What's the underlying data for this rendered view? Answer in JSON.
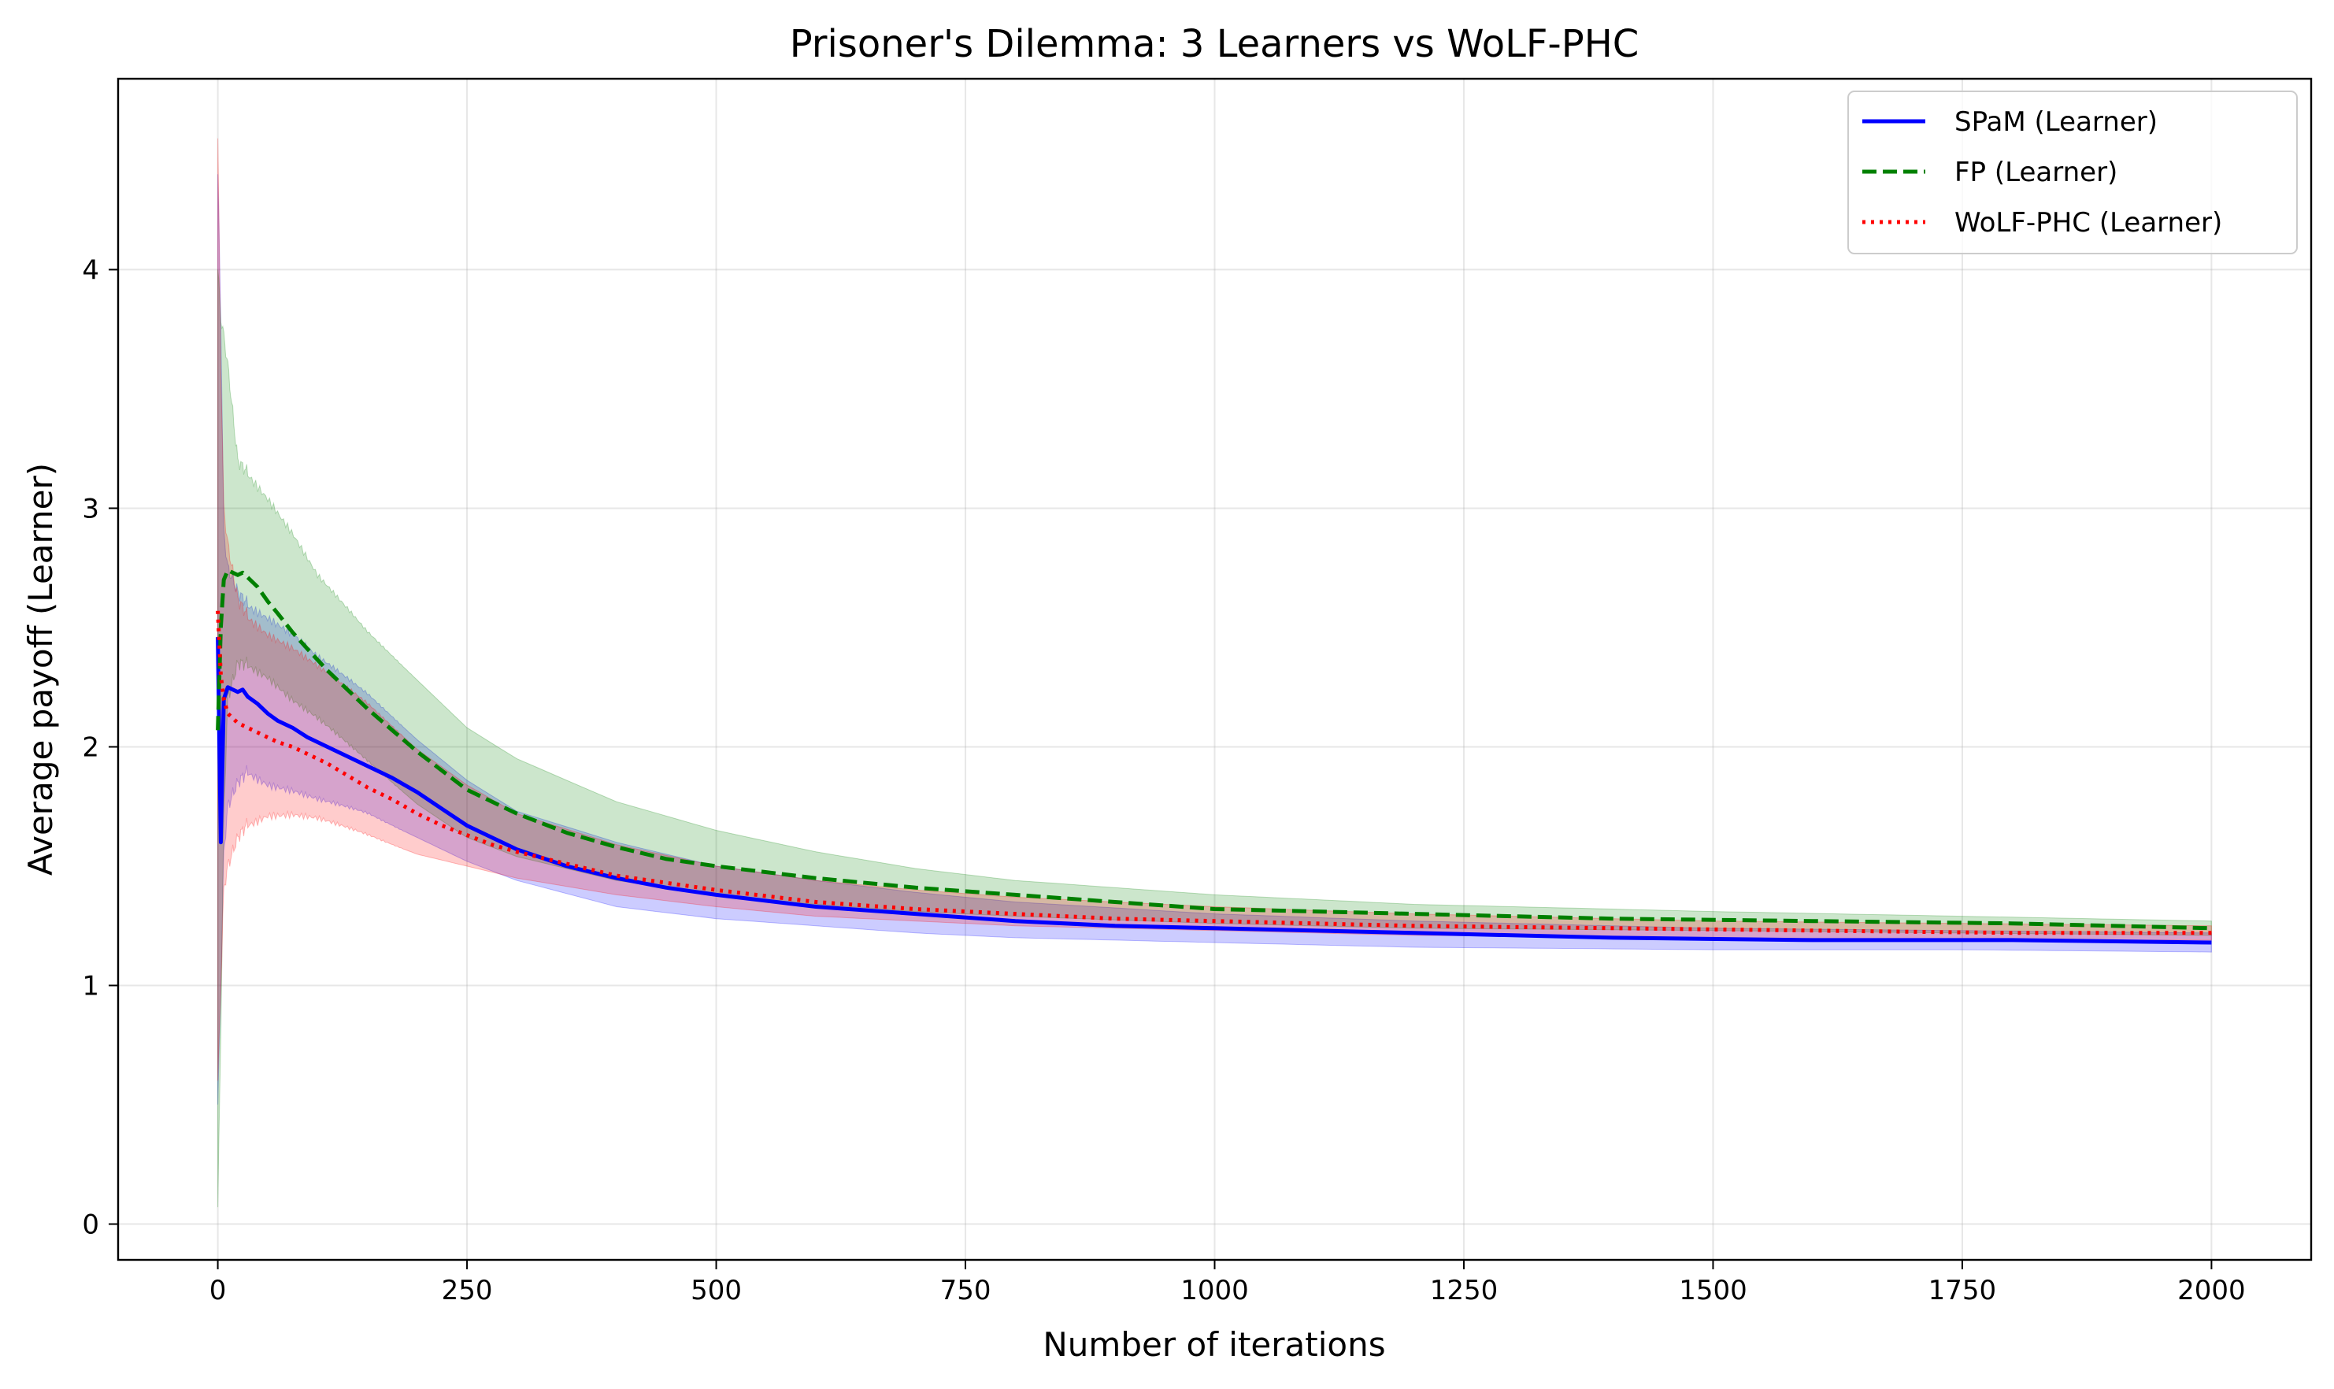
{
  "chart_data": {
    "type": "line",
    "title": "Prisoner's Dilemma: 3 Learners vs WoLF-PHC",
    "xlabel": "Number of iterations",
    "ylabel": "Average payoff (Learner)",
    "xlim": [
      -100,
      2100
    ],
    "ylim": [
      -0.15,
      4.8
    ],
    "xticks": [
      0,
      250,
      500,
      750,
      1000,
      1250,
      1500,
      1750,
      2000
    ],
    "yticks": [
      0,
      1,
      2,
      3,
      4
    ],
    "grid": true,
    "legend_position": "top-right",
    "series": [
      {
        "name": "SPaM (Learner)",
        "color": "#0000ff",
        "band_color": "#0000ff",
        "line_style": "solid",
        "points": [
          [
            0,
            2.46
          ],
          [
            3,
            1.6
          ],
          [
            6,
            2.2
          ],
          [
            10,
            2.25
          ],
          [
            15,
            2.24
          ],
          [
            20,
            2.23
          ],
          [
            25,
            2.24
          ],
          [
            30,
            2.21
          ],
          [
            40,
            2.18
          ],
          [
            50,
            2.14
          ],
          [
            60,
            2.11
          ],
          [
            75,
            2.08
          ],
          [
            90,
            2.04
          ],
          [
            110,
            2.0
          ],
          [
            130,
            1.96
          ],
          [
            150,
            1.92
          ],
          [
            175,
            1.87
          ],
          [
            200,
            1.81
          ],
          [
            225,
            1.74
          ],
          [
            250,
            1.67
          ],
          [
            275,
            1.62
          ],
          [
            300,
            1.57
          ],
          [
            350,
            1.5
          ],
          [
            400,
            1.45
          ],
          [
            450,
            1.41
          ],
          [
            500,
            1.38
          ],
          [
            600,
            1.33
          ],
          [
            700,
            1.3
          ],
          [
            800,
            1.27
          ],
          [
            900,
            1.25
          ],
          [
            1000,
            1.24
          ],
          [
            1200,
            1.22
          ],
          [
            1400,
            1.2
          ],
          [
            1600,
            1.19
          ],
          [
            1800,
            1.19
          ],
          [
            2000,
            1.18
          ]
        ],
        "upper": [
          [
            0,
            4.4
          ],
          [
            3,
            3.8
          ],
          [
            6,
            2.9
          ],
          [
            10,
            2.75
          ],
          [
            20,
            2.65
          ],
          [
            30,
            2.6
          ],
          [
            50,
            2.55
          ],
          [
            75,
            2.48
          ],
          [
            100,
            2.38
          ],
          [
            150,
            2.22
          ],
          [
            200,
            2.03
          ],
          [
            250,
            1.86
          ],
          [
            300,
            1.73
          ],
          [
            400,
            1.6
          ],
          [
            500,
            1.5
          ],
          [
            600,
            1.44
          ],
          [
            700,
            1.39
          ],
          [
            800,
            1.35
          ],
          [
            1000,
            1.3
          ],
          [
            1200,
            1.27
          ],
          [
            1500,
            1.24
          ],
          [
            1750,
            1.23
          ],
          [
            2000,
            1.22
          ]
        ],
        "lower": [
          [
            0,
            0.5
          ],
          [
            3,
            1.0
          ],
          [
            6,
            1.55
          ],
          [
            10,
            1.75
          ],
          [
            20,
            1.85
          ],
          [
            30,
            1.9
          ],
          [
            50,
            1.85
          ],
          [
            75,
            1.82
          ],
          [
            100,
            1.78
          ],
          [
            150,
            1.72
          ],
          [
            200,
            1.62
          ],
          [
            250,
            1.52
          ],
          [
            300,
            1.44
          ],
          [
            400,
            1.33
          ],
          [
            500,
            1.28
          ],
          [
            600,
            1.25
          ],
          [
            700,
            1.22
          ],
          [
            800,
            1.2
          ],
          [
            1000,
            1.18
          ],
          [
            1200,
            1.16
          ],
          [
            1500,
            1.15
          ],
          [
            1750,
            1.15
          ],
          [
            2000,
            1.14
          ]
        ]
      },
      {
        "name": "FP (Learner)",
        "color": "#008000",
        "band_color": "#008000",
        "line_style": "dashed",
        "points": [
          [
            0,
            2.07
          ],
          [
            3,
            2.5
          ],
          [
            6,
            2.7
          ],
          [
            10,
            2.74
          ],
          [
            15,
            2.73
          ],
          [
            20,
            2.72
          ],
          [
            25,
            2.73
          ],
          [
            30,
            2.71
          ],
          [
            40,
            2.67
          ],
          [
            50,
            2.61
          ],
          [
            60,
            2.56
          ],
          [
            75,
            2.48
          ],
          [
            90,
            2.41
          ],
          [
            110,
            2.32
          ],
          [
            130,
            2.24
          ],
          [
            150,
            2.16
          ],
          [
            175,
            2.07
          ],
          [
            200,
            1.98
          ],
          [
            225,
            1.9
          ],
          [
            250,
            1.82
          ],
          [
            300,
            1.72
          ],
          [
            350,
            1.64
          ],
          [
            400,
            1.58
          ],
          [
            450,
            1.53
          ],
          [
            500,
            1.5
          ],
          [
            600,
            1.45
          ],
          [
            700,
            1.41
          ],
          [
            800,
            1.38
          ],
          [
            900,
            1.35
          ],
          [
            1000,
            1.32
          ],
          [
            1200,
            1.3
          ],
          [
            1400,
            1.28
          ],
          [
            1600,
            1.27
          ],
          [
            1800,
            1.26
          ],
          [
            2000,
            1.24
          ]
        ],
        "upper": [
          [
            0,
            4.0
          ],
          [
            3,
            3.8
          ],
          [
            6,
            3.72
          ],
          [
            10,
            3.6
          ],
          [
            20,
            3.2
          ],
          [
            30,
            3.15
          ],
          [
            50,
            3.05
          ],
          [
            75,
            2.9
          ],
          [
            100,
            2.72
          ],
          [
            150,
            2.48
          ],
          [
            200,
            2.28
          ],
          [
            250,
            2.08
          ],
          [
            300,
            1.95
          ],
          [
            400,
            1.77
          ],
          [
            500,
            1.65
          ],
          [
            600,
            1.56
          ],
          [
            700,
            1.49
          ],
          [
            800,
            1.44
          ],
          [
            1000,
            1.38
          ],
          [
            1200,
            1.34
          ],
          [
            1500,
            1.31
          ],
          [
            1750,
            1.29
          ],
          [
            2000,
            1.27
          ]
        ],
        "lower": [
          [
            0,
            0.07
          ],
          [
            3,
            0.8
          ],
          [
            6,
            1.7
          ],
          [
            10,
            2.2
          ],
          [
            20,
            2.35
          ],
          [
            30,
            2.35
          ],
          [
            50,
            2.3
          ],
          [
            75,
            2.2
          ],
          [
            100,
            2.12
          ],
          [
            150,
            1.94
          ],
          [
            200,
            1.76
          ],
          [
            250,
            1.62
          ],
          [
            300,
            1.54
          ],
          [
            400,
            1.44
          ],
          [
            500,
            1.38
          ],
          [
            600,
            1.34
          ],
          [
            700,
            1.31
          ],
          [
            800,
            1.29
          ],
          [
            1000,
            1.26
          ],
          [
            1200,
            1.24
          ],
          [
            1500,
            1.23
          ],
          [
            1750,
            1.22
          ],
          [
            2000,
            1.21
          ]
        ]
      },
      {
        "name": "WoLF-PHC (Learner)",
        "color": "#ff0000",
        "band_color": "#ff0000",
        "line_style": "dotted",
        "points": [
          [
            0,
            2.57
          ],
          [
            3,
            2.3
          ],
          [
            6,
            2.2
          ],
          [
            10,
            2.14
          ],
          [
            15,
            2.12
          ],
          [
            20,
            2.1
          ],
          [
            30,
            2.08
          ],
          [
            40,
            2.06
          ],
          [
            50,
            2.04
          ],
          [
            60,
            2.02
          ],
          [
            75,
            2.0
          ],
          [
            90,
            1.97
          ],
          [
            110,
            1.93
          ],
          [
            130,
            1.88
          ],
          [
            150,
            1.83
          ],
          [
            175,
            1.78
          ],
          [
            200,
            1.72
          ],
          [
            225,
            1.67
          ],
          [
            250,
            1.63
          ],
          [
            275,
            1.59
          ],
          [
            300,
            1.56
          ],
          [
            350,
            1.51
          ],
          [
            400,
            1.46
          ],
          [
            450,
            1.43
          ],
          [
            500,
            1.4
          ],
          [
            600,
            1.35
          ],
          [
            700,
            1.32
          ],
          [
            800,
            1.3
          ],
          [
            900,
            1.28
          ],
          [
            1000,
            1.27
          ],
          [
            1200,
            1.25
          ],
          [
            1400,
            1.24
          ],
          [
            1600,
            1.23
          ],
          [
            1800,
            1.22
          ],
          [
            2000,
            1.22
          ]
        ],
        "upper": [
          [
            0,
            4.55
          ],
          [
            3,
            3.6
          ],
          [
            6,
            3.0
          ],
          [
            10,
            2.85
          ],
          [
            20,
            2.62
          ],
          [
            30,
            2.55
          ],
          [
            50,
            2.48
          ],
          [
            75,
            2.42
          ],
          [
            100,
            2.34
          ],
          [
            150,
            2.18
          ],
          [
            200,
            1.99
          ],
          [
            250,
            1.84
          ],
          [
            300,
            1.72
          ],
          [
            400,
            1.59
          ],
          [
            500,
            1.5
          ],
          [
            600,
            1.44
          ],
          [
            700,
            1.4
          ],
          [
            800,
            1.37
          ],
          [
            1000,
            1.33
          ],
          [
            1200,
            1.3
          ],
          [
            1500,
            1.27
          ],
          [
            1750,
            1.26
          ],
          [
            2000,
            1.25
          ]
        ],
        "lower": [
          [
            0,
            0.6
          ],
          [
            3,
            1.0
          ],
          [
            6,
            1.4
          ],
          [
            10,
            1.5
          ],
          [
            20,
            1.62
          ],
          [
            30,
            1.68
          ],
          [
            50,
            1.72
          ],
          [
            75,
            1.72
          ],
          [
            100,
            1.7
          ],
          [
            150,
            1.63
          ],
          [
            200,
            1.55
          ],
          [
            250,
            1.5
          ],
          [
            300,
            1.45
          ],
          [
            400,
            1.38
          ],
          [
            500,
            1.33
          ],
          [
            600,
            1.29
          ],
          [
            700,
            1.27
          ],
          [
            800,
            1.25
          ],
          [
            1000,
            1.23
          ],
          [
            1200,
            1.21
          ],
          [
            1500,
            1.2
          ],
          [
            1750,
            1.19
          ],
          [
            2000,
            1.19
          ]
        ]
      }
    ]
  }
}
